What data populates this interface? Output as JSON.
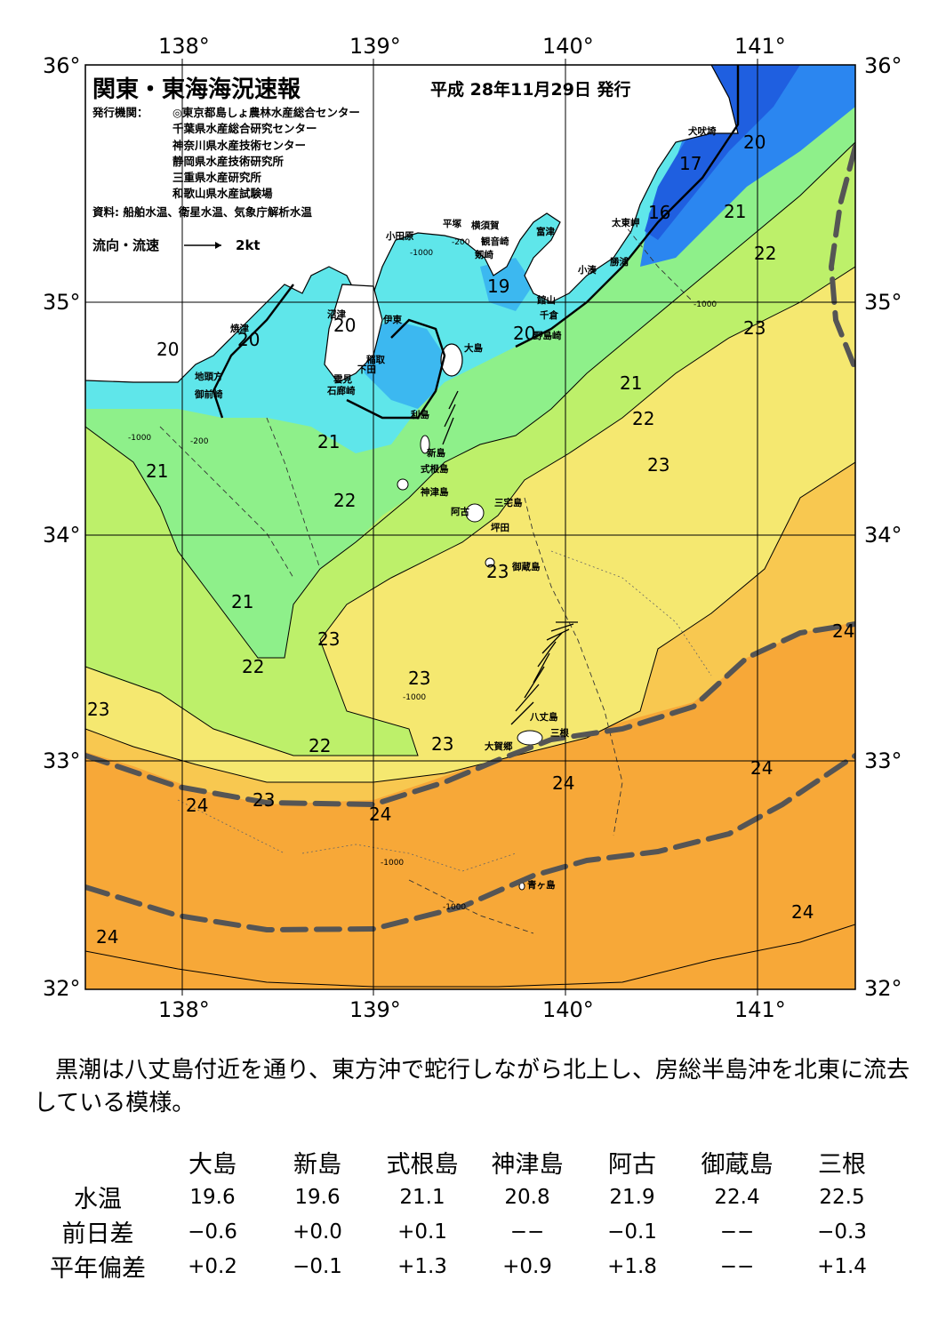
{
  "header": {
    "title": "関東・東海海況速報",
    "issue_date": "平成  28年11月29日  発行",
    "issuer_label": "発行機関：",
    "issuers": [
      "◎東京都島しょ農林水産総合センター",
      "千葉県水産総合研究センター",
      "神奈川県水産技術センター",
      "静岡県水産技術研究所",
      "三重県水産研究所",
      "和歌山県水産試験場"
    ],
    "sources": "資料: 船舶水温、衛星水温、気象庁解析水温",
    "legend_label": "流向・流速",
    "legend_scale": "2kt"
  },
  "axes": {
    "lon_labels": [
      "138°",
      "139°",
      "140°",
      "141°"
    ],
    "lat_labels": [
      "36°",
      "35°",
      "34°",
      "33°",
      "32°"
    ]
  },
  "places": [
    "犬吠埼",
    "太東岬",
    "勝浦",
    "小湊",
    "富津",
    "横須賀",
    "観音崎",
    "剱崎",
    "平塚",
    "小田原",
    "館山",
    "千倉",
    "野島崎",
    "大島",
    "伊東",
    "稲取",
    "下田",
    "雲見",
    "石廊崎",
    "沼津",
    "焼津",
    "地頭方",
    "御前崎",
    "利島",
    "新島",
    "式根島",
    "神津島",
    "三宅島",
    "阿古",
    "坪田",
    "御蔵島",
    "八丈島",
    "三根",
    "大賀郷",
    "青ヶ島"
  ],
  "isotherm_labels": [
    "20",
    "17",
    "16",
    "21",
    "22",
    "23",
    "20",
    "20",
    "19",
    "20",
    "21",
    "22",
    "23",
    "20",
    "21",
    "21",
    "22",
    "21",
    "23",
    "22",
    "23",
    "23",
    "23",
    "22",
    "23",
    "24",
    "24",
    "24",
    "24",
    "24",
    "24",
    "23",
    "24"
  ],
  "depth_labels": [
    "-1000",
    "-200"
  ],
  "summary": "黒潮は八丈島付近を通り、東方沖で蛇行しながら北上し、房総半島沖を北東に流去している模様。",
  "observations": {
    "stations": [
      "大島",
      "新島",
      "式根島",
      "神津島",
      "阿古",
      "御蔵島",
      "三根"
    ],
    "rows": [
      {
        "label": "水温",
        "values": [
          "19.6",
          "19.6",
          "21.1",
          "20.8",
          "21.9",
          "22.4",
          "22.5"
        ]
      },
      {
        "label": "前日差",
        "values": [
          "−0.6",
          "+0.0",
          "+0.1",
          "−−",
          "−0.1",
          "−−",
          "−0.3"
        ]
      },
      {
        "label": "平年偏差",
        "values": [
          "+0.2",
          "−0.1",
          "+1.3",
          "+0.9",
          "+1.8",
          "−−",
          "+1.4"
        ]
      }
    ]
  },
  "colors": {
    "t16": "#1f5fe0",
    "t17": "#2b86f0",
    "t19": "#3cb8f0",
    "t20": "#5fe6ea",
    "t21": "#8ef08a",
    "t22": "#bdf06a",
    "t23": "#f5e870",
    "t23b": "#f8c850",
    "t24": "#f7a838",
    "land": "#ffffff",
    "kuroshio": "#555555"
  }
}
